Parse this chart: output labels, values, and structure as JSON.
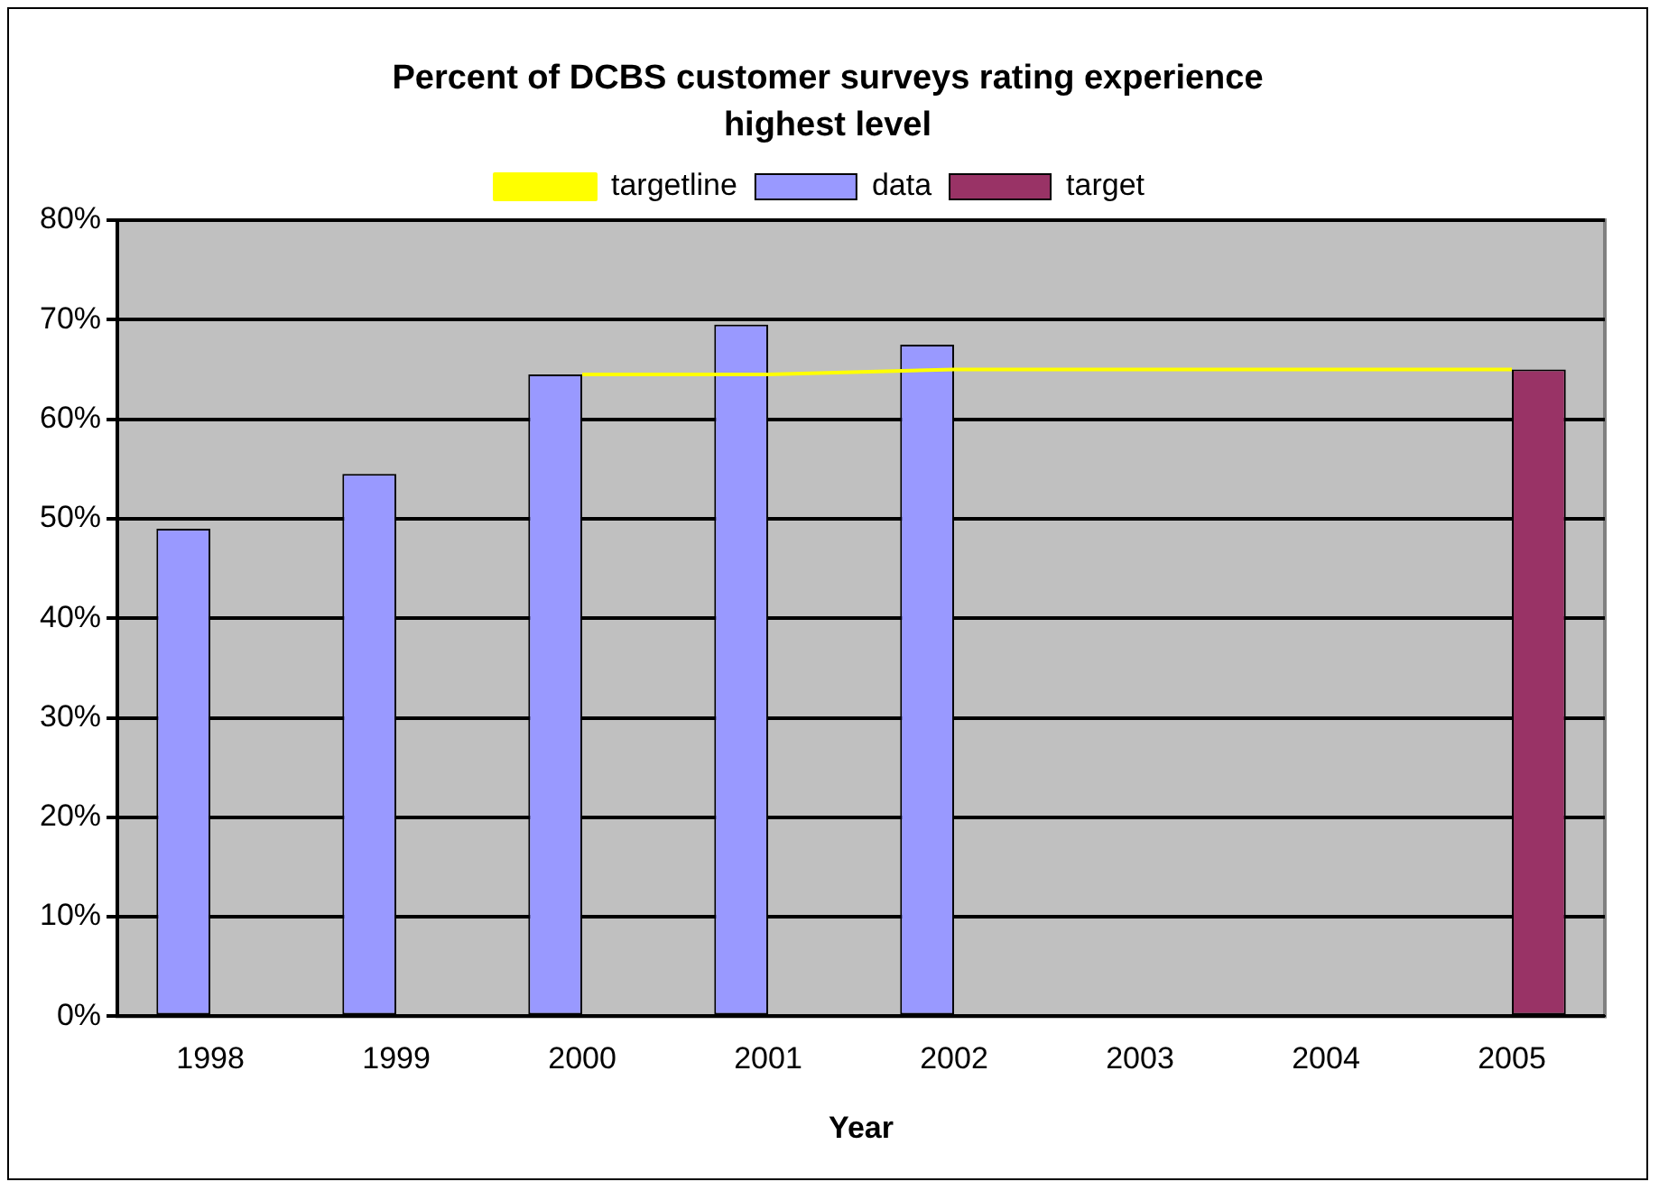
{
  "chart_data": {
    "type": "bar",
    "title": "Percent of DCBS customer surveys rating experience highest level",
    "xlabel": "Year",
    "categories": [
      "1998",
      "1999",
      "2000",
      "2001",
      "2002",
      "2003",
      "2004",
      "2005"
    ],
    "series": [
      {
        "name": "data",
        "color": "#9999ff",
        "values": [
          49,
          54.5,
          64.5,
          69.5,
          67.5,
          null,
          null,
          null
        ]
      },
      {
        "name": "target",
        "color": "#993366",
        "values": [
          null,
          null,
          null,
          null,
          null,
          null,
          null,
          65
        ]
      },
      {
        "name": "targetline",
        "type": "line",
        "color": "#ffff00",
        "values": [
          null,
          null,
          64.5,
          64.5,
          65,
          65,
          65,
          65
        ]
      }
    ],
    "ylim": [
      0,
      80
    ],
    "yticks": [
      {
        "value": 0,
        "label": "0%"
      },
      {
        "value": 10,
        "label": "10%"
      },
      {
        "value": 20,
        "label": "20%"
      },
      {
        "value": 30,
        "label": "30%"
      },
      {
        "value": 40,
        "label": "40%"
      },
      {
        "value": 50,
        "label": "50%"
      },
      {
        "value": 60,
        "label": "60%"
      },
      {
        "value": 70,
        "label": "70%"
      },
      {
        "value": 80,
        "label": "80%"
      }
    ],
    "grid": "y",
    "legend": "top",
    "marker": "none",
    "line_style": "solid"
  }
}
